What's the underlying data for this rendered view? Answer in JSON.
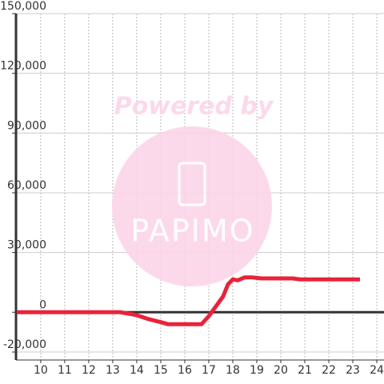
{
  "chart_data": {
    "type": "line",
    "watermark": {
      "text": "Powered by",
      "logo": "PAPIMO"
    },
    "x": [
      9,
      10,
      11,
      12,
      13,
      13.3,
      13.8,
      14,
      14.5,
      15,
      15.3,
      16,
      16.5,
      16.7,
      17,
      17.3,
      17.6,
      17.8,
      18,
      18.2,
      18.5,
      18.8,
      19.2,
      20,
      20.5,
      20.8,
      21,
      22,
      23,
      23.3
    ],
    "series": [
      {
        "color": "#e8233a",
        "values": [
          0,
          0,
          0,
          0,
          0,
          0,
          -1000,
          -1500,
          -3500,
          -5000,
          -6000,
          -6000,
          -6000,
          -6000,
          -2000,
          3000,
          8000,
          14000,
          16500,
          16000,
          17500,
          17500,
          17000,
          17000,
          17000,
          16500,
          16500,
          16500,
          16500,
          16500
        ]
      }
    ],
    "xlim": [
      8.97,
      24.3
    ],
    "ylim": [
      -24000,
      150000
    ],
    "xticks": [
      10,
      11,
      12,
      13,
      14,
      15,
      16,
      17,
      18,
      19,
      20,
      21,
      22,
      23,
      24
    ],
    "yticks": [
      {
        "value": -20000,
        "label": "-20,000"
      },
      0,
      {
        "value": 30000,
        "label": "30,000"
      },
      {
        "value": 60000,
        "label": "60,000"
      },
      {
        "value": 90000,
        "label": "90,000"
      },
      {
        "value": 120000,
        "label": "120,000"
      },
      {
        "value": 150000,
        "label": "150,000"
      }
    ],
    "grid": true
  }
}
